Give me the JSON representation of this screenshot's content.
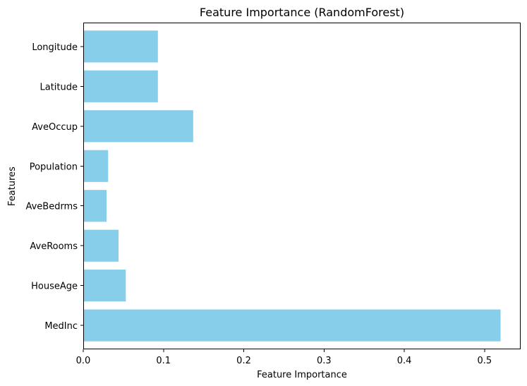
{
  "chart_data": {
    "type": "bar",
    "orientation": "horizontal",
    "title": "Feature Importance (RandomForest)",
    "xlabel": "Feature Importance",
    "ylabel": "Features",
    "categories": [
      "MedInc",
      "HouseAge",
      "AveRooms",
      "AveBedrms",
      "Population",
      "AveOccup",
      "Latitude",
      "Longitude"
    ],
    "values": [
      0.52,
      0.053,
      0.044,
      0.029,
      0.031,
      0.137,
      0.093,
      0.093
    ],
    "xlim": [
      0,
      0.545
    ],
    "xticks": [
      0.0,
      0.1,
      0.2,
      0.3,
      0.4,
      0.5
    ],
    "xtick_labels": [
      "0.0",
      "0.1",
      "0.2",
      "0.3",
      "0.4",
      "0.5"
    ],
    "bar_color": "#87CEEB",
    "grid": false,
    "legend": false
  }
}
